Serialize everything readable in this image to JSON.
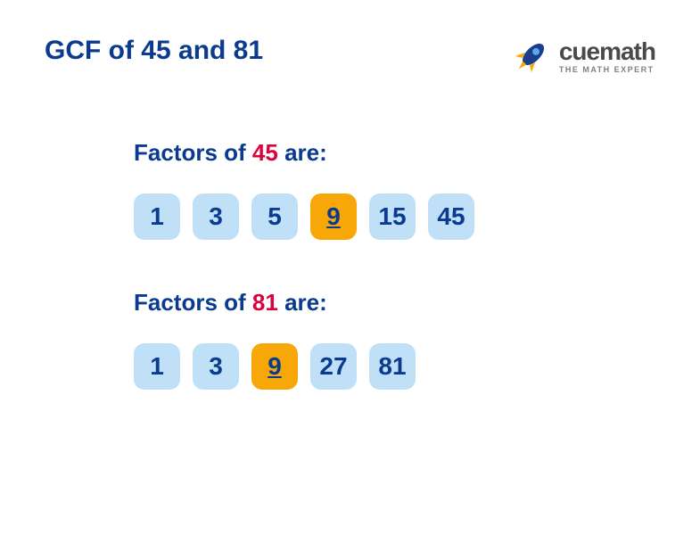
{
  "title": "GCF of 45 and 81",
  "logo": {
    "name": "cuemath",
    "tagline": "THE MATH EXPERT",
    "rocket_body_color": "#1a3e8c",
    "rocket_window_color": "#5aa9e8",
    "rocket_fin_color": "#f7a808",
    "rocket_flame_color": "#f7a808"
  },
  "colors": {
    "title_text": "#0b3b8f",
    "accent_number": "#d9043d",
    "box_bg": "#bfe0f7",
    "box_text": "#0b3b8f",
    "highlight_bg": "#f7a808",
    "highlight_text": "#0b3b8f",
    "page_bg": "#ffffff"
  },
  "typography": {
    "title_fontsize": 30,
    "section_title_fontsize": 26,
    "box_fontsize": 28,
    "logo_fontsize": 28,
    "tagline_fontsize": 9
  },
  "layout": {
    "box_size": 52,
    "box_gap": 14,
    "box_radius": 12,
    "section_left_indent": 100
  },
  "sections": [
    {
      "label_prefix": "Factors of ",
      "number": "45",
      "label_suffix": " are:",
      "factors": [
        {
          "value": "1",
          "highlight": false
        },
        {
          "value": "3",
          "highlight": false
        },
        {
          "value": "5",
          "highlight": false
        },
        {
          "value": "9",
          "highlight": true
        },
        {
          "value": "15",
          "highlight": false
        },
        {
          "value": "45",
          "highlight": false
        }
      ]
    },
    {
      "label_prefix": "Factors of ",
      "number": "81",
      "label_suffix": " are:",
      "factors": [
        {
          "value": "1",
          "highlight": false
        },
        {
          "value": "3",
          "highlight": false
        },
        {
          "value": "9",
          "highlight": true
        },
        {
          "value": "27",
          "highlight": false
        },
        {
          "value": "81",
          "highlight": false
        }
      ]
    }
  ]
}
